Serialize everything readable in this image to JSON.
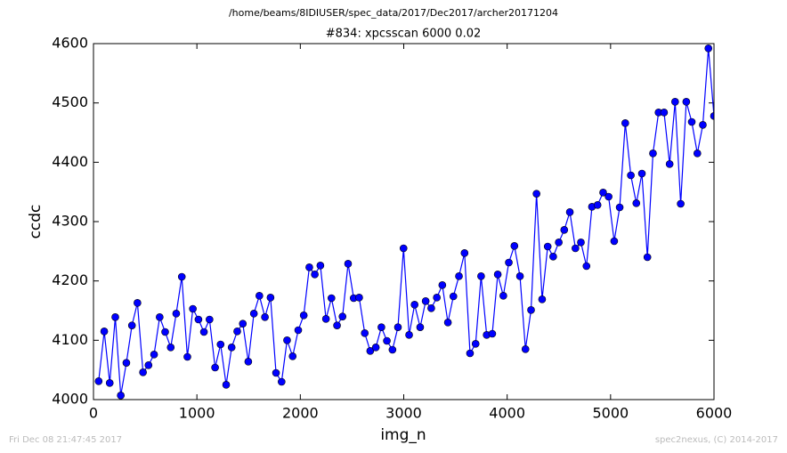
{
  "chart_data": {
    "type": "line",
    "suptitle": "/home/beams/8IDIUSER/spec_data/2017/Dec2017/archer20171204",
    "title": "#834: xpcsscan 6000 0.02",
    "x_label": "img_n",
    "y_label": "ccdc",
    "footer_left": "Fri Dec 08 21:47:45 2017",
    "footer_right": "spec2nexus, (C) 2014-2017",
    "x": [
      50,
      104,
      157,
      211,
      264,
      318,
      372,
      425,
      479,
      532,
      586,
      640,
      693,
      747,
      800,
      854,
      908,
      961,
      1015,
      1068,
      1122,
      1176,
      1229,
      1283,
      1336,
      1390,
      1444,
      1497,
      1551,
      1604,
      1658,
      1712,
      1765,
      1819,
      1872,
      1926,
      1980,
      2033,
      2087,
      2140,
      2194,
      2248,
      2301,
      2355,
      2408,
      2462,
      2516,
      2569,
      2623,
      2676,
      2730,
      2784,
      2837,
      2891,
      2944,
      2998,
      3052,
      3105,
      3159,
      3212,
      3266,
      3320,
      3373,
      3427,
      3480,
      3534,
      3588,
      3641,
      3695,
      3748,
      3802,
      3856,
      3909,
      3963,
      4016,
      4070,
      4124,
      4177,
      4231,
      4284,
      4338,
      4392,
      4445,
      4499,
      4552,
      4606,
      4660,
      4713,
      4767,
      4820,
      4874,
      4928,
      4981,
      5035,
      5088,
      5142,
      5196,
      5249,
      5303,
      5356,
      5410,
      5464,
      5517,
      5571,
      5624,
      5678,
      5732,
      5785,
      5839,
      5892,
      5946,
      6000
    ],
    "series": [
      {
        "color": "#0000ff",
        "values": [
          4031,
          4115,
          4028,
          4139,
          4007,
          4062,
          4125,
          4163,
          4046,
          4058,
          4076,
          4139,
          4114,
          4088,
          4145,
          4207,
          4072,
          4153,
          4135,
          4114,
          4135,
          4054,
          4093,
          4025,
          4088,
          4115,
          4128,
          4064,
          4145,
          4175,
          4139,
          4172,
          4045,
          4030,
          4100,
          4073,
          4117,
          4142,
          4223,
          4211,
          4226,
          4136,
          4171,
          4125,
          4140,
          4229,
          4171,
          4172,
          4112,
          4082,
          4088,
          4122,
          4099,
          4084,
          4122,
          4255,
          4109,
          4160,
          4122,
          4166,
          4154,
          4172,
          4193,
          4130,
          4174,
          4208,
          4247,
          4078,
          4094,
          4208,
          4109,
          4111,
          4211,
          4175,
          4231,
          4259,
          4208,
          4085,
          4151,
          4347,
          4169,
          4258,
          4241,
          4265,
          4286,
          4316,
          4255,
          4265,
          4225,
          4325,
          4328,
          4349,
          4342,
          4267,
          4324,
          4466,
          4378,
          4331,
          4381,
          4240,
          4415,
          4484,
          4484,
          4397,
          4502,
          4330,
          4502,
          4468,
          4415,
          4463,
          4592,
          4478
        ]
      }
    ],
    "xlim": [
      0,
      6000
    ],
    "xticks": [
      0,
      1000,
      2000,
      3000,
      4000,
      5000,
      6000
    ],
    "ylim": [
      4000,
      4600
    ],
    "yticks": [
      4000,
      4100,
      4200,
      4300,
      4400,
      4500,
      4600
    ]
  }
}
